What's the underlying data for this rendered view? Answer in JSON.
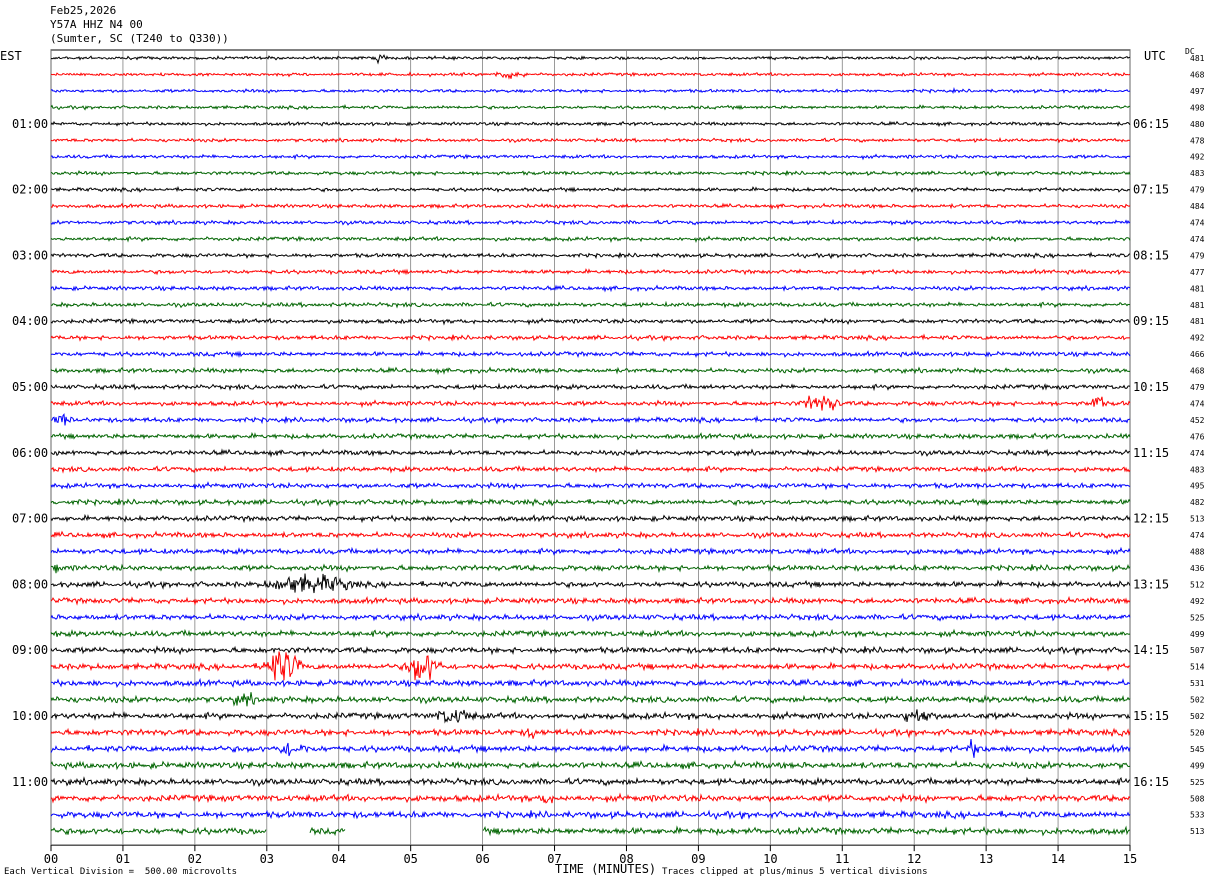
{
  "header": {
    "date": "Feb25,2026",
    "station": "Y57A HHZ N4 00",
    "location": "(Sumter, SC (T240 to Q330))"
  },
  "left_timezone": "EST",
  "right_timezone": "UTC",
  "dc_label": "DC",
  "footer": {
    "xlabel": "TIME (MINUTES)",
    "division_note": "Each Vertical Division =  500.00 microvolts",
    "clip_note": "Traces clipped at plus/minus 5 vertical divisions"
  },
  "colors": {
    "cycle": [
      "#000000",
      "#ff0000",
      "#0000ff",
      "#006400"
    ],
    "grid": "#808080"
  },
  "chart_data": {
    "type": "line",
    "xlim": [
      0,
      15
    ],
    "x_ticks": [
      "00",
      "01",
      "02",
      "03",
      "04",
      "05",
      "06",
      "07",
      "08",
      "09",
      "10",
      "11",
      "12",
      "13",
      "14",
      "15"
    ],
    "left_hour_labels": [
      "01:00",
      "02:00",
      "03:00",
      "04:00",
      "05:00",
      "06:00",
      "07:00",
      "08:00",
      "09:00",
      "10:00",
      "11:00"
    ],
    "right_hour_labels": [
      "06:15",
      "07:15",
      "08:15",
      "09:15",
      "10:15",
      "11:15",
      "12:15",
      "13:15",
      "14:15",
      "15:15",
      "16:15"
    ],
    "dc_values": [
      "481",
      "468",
      "497",
      "498",
      "480",
      "478",
      "492",
      "483",
      "479",
      "484",
      "474",
      "474",
      "479",
      "477",
      "481",
      "481",
      "481",
      "492",
      "466",
      "468",
      "479",
      "474",
      "452",
      "476",
      "474",
      "483",
      "495",
      "482",
      "513",
      "474",
      "488",
      "436",
      "512",
      "492",
      "525",
      "499",
      "507",
      "514",
      "531",
      "502",
      "502",
      "520",
      "545",
      "499",
      "525",
      "508",
      "533",
      "513"
    ],
    "trace_count": 48,
    "events": [
      {
        "trace": 0,
        "start_min": 4.5,
        "end_min": 4.8,
        "amp": 1.2
      },
      {
        "trace": 1,
        "start_min": 6.1,
        "end_min": 7.0,
        "amp": 1.0
      },
      {
        "trace": 21,
        "start_min": 10.4,
        "end_min": 11.4,
        "amp": 2.5
      },
      {
        "trace": 21,
        "start_min": 14.45,
        "end_min": 14.75,
        "amp": 3.5
      },
      {
        "trace": 22,
        "start_min": 0.0,
        "end_min": 0.5,
        "amp": 1.5
      },
      {
        "trace": 31,
        "start_min": 0.0,
        "end_min": 0.2,
        "amp": 2.0
      },
      {
        "trace": 32,
        "start_min": 2.9,
        "end_min": 5.2,
        "amp": 2.5
      },
      {
        "trace": 37,
        "start_min": 2.9,
        "end_min": 3.9,
        "amp": 5.0
      },
      {
        "trace": 37,
        "start_min": 4.9,
        "end_min": 5.8,
        "amp": 5.0
      },
      {
        "trace": 39,
        "start_min": 2.5,
        "end_min": 3.1,
        "amp": 1.5
      },
      {
        "trace": 40,
        "start_min": 5.3,
        "end_min": 6.3,
        "amp": 2.0
      },
      {
        "trace": 40,
        "start_min": 11.8,
        "end_min": 12.6,
        "amp": 2.0
      },
      {
        "trace": 41,
        "start_min": 6.6,
        "end_min": 6.9,
        "amp": 1.5
      },
      {
        "trace": 42,
        "start_min": 3.1,
        "end_min": 3.9,
        "amp": 1.8
      },
      {
        "trace": 42,
        "start_min": 12.7,
        "end_min": 13.1,
        "amp": 2.0
      },
      {
        "trace": 45,
        "start_min": 6.8,
        "end_min": 7.1,
        "amp": 1.5
      }
    ],
    "gaps": [
      {
        "trace": 47,
        "start_min": 3.0,
        "end_min": 3.6
      },
      {
        "trace": 47,
        "start_min": 4.1,
        "end_min": 6.0
      }
    ]
  }
}
